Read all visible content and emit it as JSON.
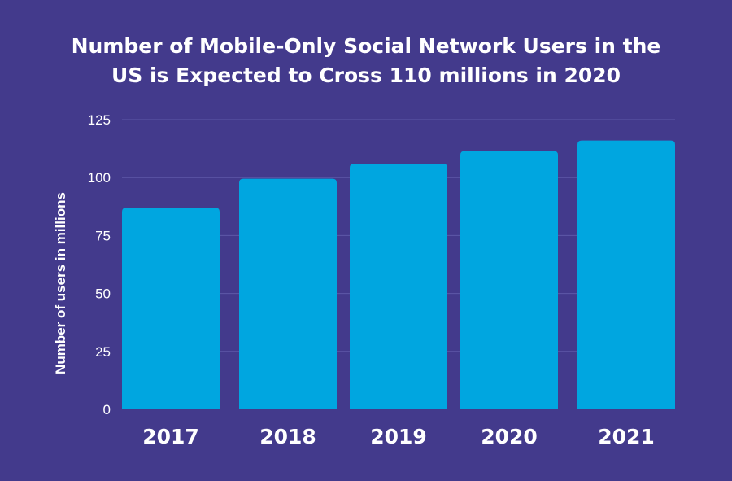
{
  "colors": {
    "background": "#433a8c",
    "bar": "#00a6e0",
    "gridline": "#5e58a8",
    "text": "#ffffff"
  },
  "chart_data": {
    "type": "bar",
    "title_lines": [
      "Number of Mobile-Only Social Network Users in the",
      "US is Expected to Cross 110 millions in 2020"
    ],
    "xlabel": "",
    "ylabel": "Number of users in millions",
    "categories": [
      "2017",
      "2018",
      "2019",
      "2020",
      "2021"
    ],
    "values": [
      87,
      99.5,
      106,
      111.5,
      116
    ],
    "ylim": [
      0,
      125
    ],
    "yticks": [
      "0",
      "25",
      "50",
      "75",
      "100",
      "125"
    ],
    "grid": true,
    "legend": "none"
  }
}
